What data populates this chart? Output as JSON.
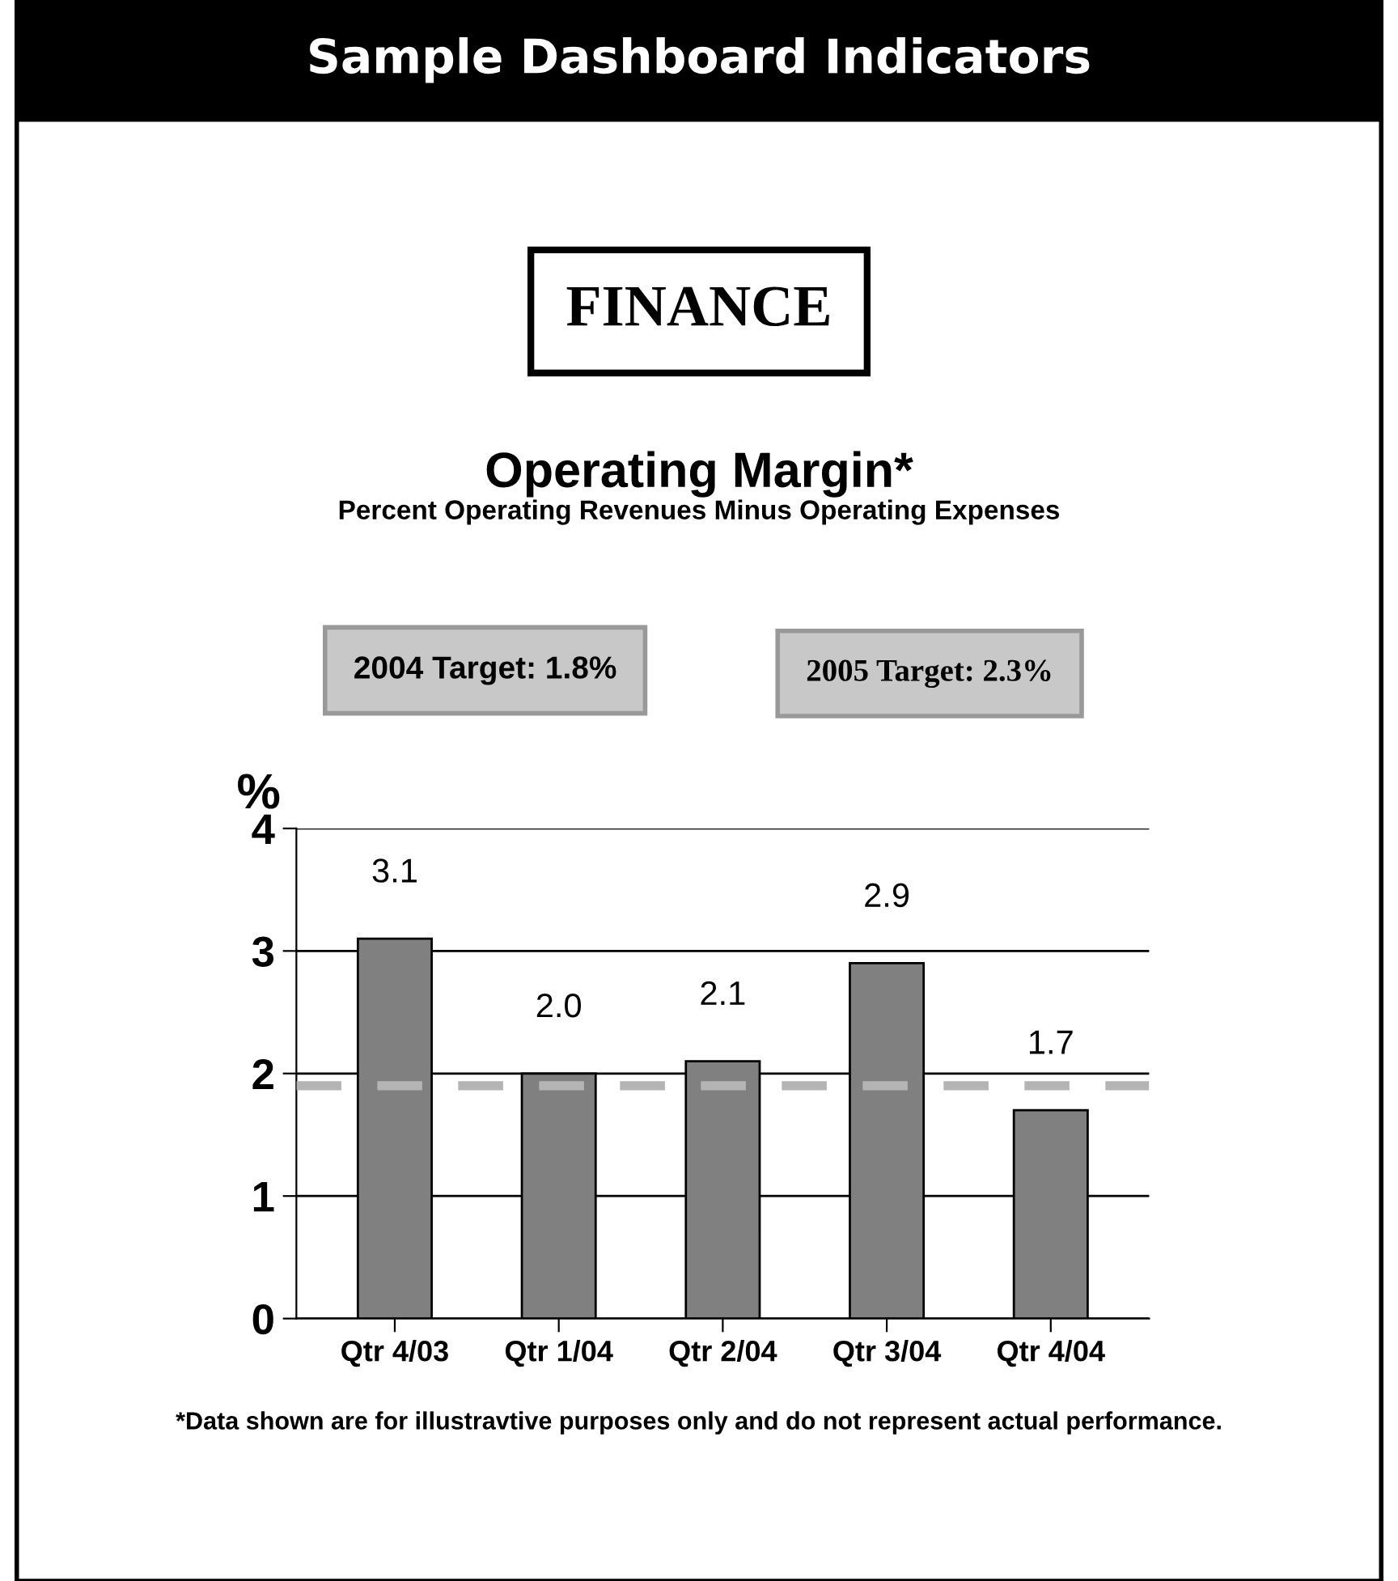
{
  "chart_data": {
    "type": "bar",
    "title": "Operating Margin*",
    "subtitle": "Percent Operating Revenues Minus Operating Expenses",
    "ylabel": "%",
    "categories": [
      "Qtr 4/03",
      "Qtr 1/04",
      "Qtr 2/04",
      "Qtr 3/04",
      "Qtr 4/04"
    ],
    "values": [
      3.1,
      2.0,
      2.1,
      2.9,
      1.7
    ],
    "color": "#808080",
    "ylim": [
      0,
      4
    ],
    "yticks": [
      0,
      1,
      2,
      3,
      4
    ],
    "grid": "y",
    "value_labels": [
      "3.1",
      "2.0",
      "2.1",
      "2.9",
      "1.7"
    ],
    "ref_lines": [
      {
        "axis": "y",
        "value": 1.9,
        "color": "#b4b4b4",
        "line_style": "dashed"
      }
    ],
    "annotations": [
      "Sample Dashboard Indicators",
      "FINANCE",
      "2004 Target: 1.8%",
      "2005 Target: 2.3%",
      "*Data shown are for illustravtive purposes only and do not represent actual performance."
    ]
  }
}
